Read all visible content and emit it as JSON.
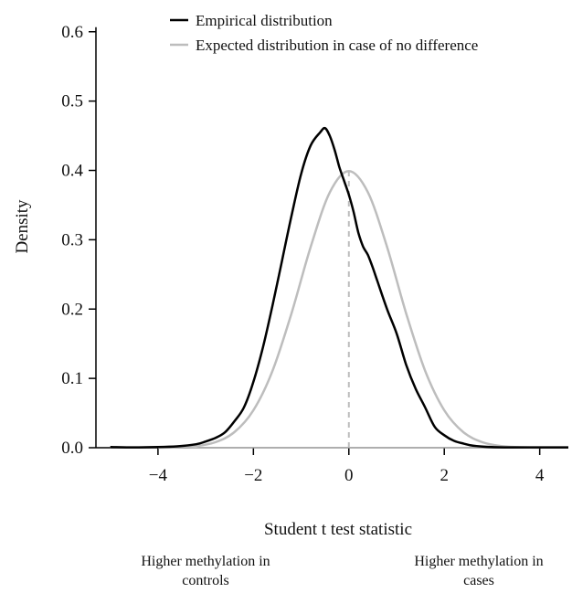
{
  "chart_data": {
    "type": "line",
    "title": "",
    "xlabel": "Student t test statistic",
    "ylabel": "Density",
    "xlim": [
      -5.3,
      4.6
    ],
    "ylim": [
      0,
      0.63
    ],
    "xticks": [
      -4,
      -2,
      0,
      2,
      4
    ],
    "xtick_labels": [
      "−4",
      "−2",
      "0",
      "2",
      "4"
    ],
    "yticks": [
      0.0,
      0.1,
      0.2,
      0.3,
      0.4,
      0.5,
      0.6
    ],
    "ytick_labels": [
      "0.0",
      "0.1",
      "0.2",
      "0.3",
      "0.4",
      "0.5",
      "0.6"
    ],
    "grid": false,
    "legend_position": "top",
    "reference_line": {
      "x": 0,
      "style": "dashed",
      "color": "#bdbdbd"
    },
    "series": [
      {
        "name": "Empirical distribution",
        "color": "#000000",
        "x": [
          -5.0,
          -4.5,
          -4.0,
          -3.6,
          -3.2,
          -3.0,
          -2.8,
          -2.6,
          -2.4,
          -2.2,
          -2.0,
          -1.8,
          -1.6,
          -1.4,
          -1.2,
          -1.0,
          -0.8,
          -0.6,
          -0.5,
          -0.4,
          -0.3,
          -0.2,
          -0.1,
          0.0,
          0.1,
          0.2,
          0.3,
          0.4,
          0.5,
          0.6,
          0.8,
          1.0,
          1.2,
          1.4,
          1.6,
          1.8,
          2.0,
          2.2,
          2.4,
          2.6,
          3.0,
          3.5,
          4.0,
          4.6
        ],
        "y": [
          0.001,
          0.0005,
          0.001,
          0.002,
          0.005,
          0.009,
          0.014,
          0.022,
          0.038,
          0.058,
          0.095,
          0.145,
          0.205,
          0.27,
          0.335,
          0.395,
          0.436,
          0.455,
          0.461,
          0.45,
          0.43,
          0.405,
          0.385,
          0.365,
          0.34,
          0.31,
          0.29,
          0.278,
          0.26,
          0.24,
          0.2,
          0.165,
          0.12,
          0.085,
          0.058,
          0.03,
          0.018,
          0.01,
          0.006,
          0.003,
          0.001,
          0.0005,
          0.0005,
          0.0005
        ]
      },
      {
        "name": "Expected distribution in case of no difference",
        "color": "#bdbdbd",
        "distribution": "standard normal",
        "x": [
          -4.0,
          -3.6,
          -3.2,
          -2.8,
          -2.4,
          -2.0,
          -1.6,
          -1.2,
          -0.8,
          -0.4,
          0.0,
          0.4,
          0.8,
          1.2,
          1.6,
          2.0,
          2.4,
          2.8,
          3.2,
          3.6,
          4.0
        ],
        "y": [
          0.0001,
          0.0006,
          0.0024,
          0.0079,
          0.0224,
          0.054,
          0.1109,
          0.1942,
          0.2897,
          0.3683,
          0.3989,
          0.3683,
          0.2897,
          0.1942,
          0.1109,
          0.054,
          0.0224,
          0.0079,
          0.0024,
          0.0006,
          0.0001
        ]
      }
    ]
  },
  "annotations": {
    "left": [
      "Higher methylation in",
      "controls"
    ],
    "right": [
      "Higher methylation in",
      "cases"
    ]
  }
}
